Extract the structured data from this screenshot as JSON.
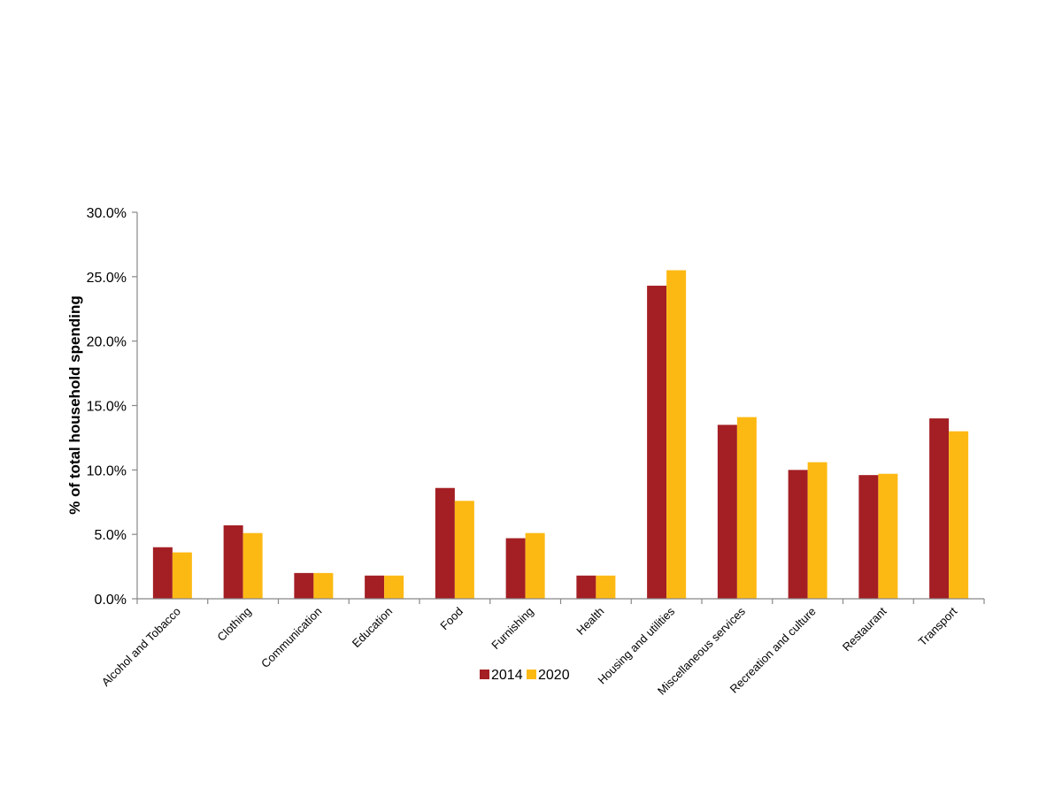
{
  "chart_data": {
    "type": "bar",
    "title": "",
    "xlabel": "",
    "ylabel": "% of total household spending",
    "ylim": [
      0,
      30
    ],
    "ytick_step": 5,
    "ytick_format": "percent_1dp",
    "grid": false,
    "legend_position": "bottom",
    "categories": [
      "Alcohol and Tobacco",
      "Clothing",
      "Communication",
      "Education",
      "Food",
      "Furnishing",
      "Health",
      "Housing and utilities",
      "Miscellaneous services",
      "Recreation and culture",
      "Restaurant",
      "Transport"
    ],
    "series": [
      {
        "name": "2014",
        "color": "#A31F24",
        "values": [
          4.0,
          5.7,
          2.0,
          1.8,
          8.6,
          4.7,
          1.8,
          24.3,
          13.5,
          10.0,
          9.6,
          14.0
        ]
      },
      {
        "name": "2020",
        "color": "#FDB913",
        "values": [
          3.6,
          5.1,
          2.0,
          1.8,
          7.6,
          5.1,
          1.8,
          25.5,
          14.1,
          10.6,
          9.7,
          13.0
        ]
      }
    ],
    "yticks": [
      "0.0%",
      "5.0%",
      "10.0%",
      "15.0%",
      "20.0%",
      "25.0%",
      "30.0%"
    ]
  }
}
